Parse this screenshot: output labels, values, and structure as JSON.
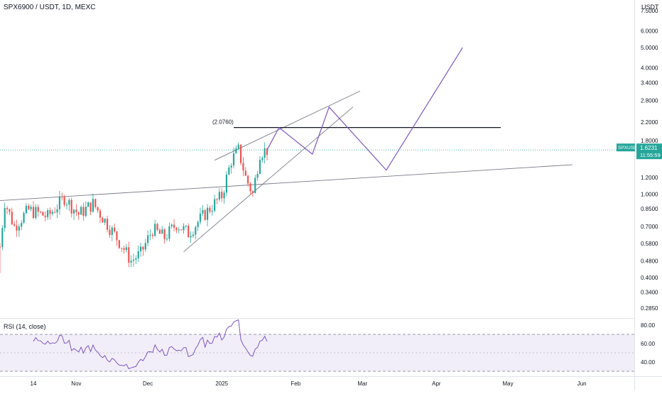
{
  "header": {
    "symbol_title": "SPX6900 / USDT, 1D, MEXC",
    "currency": "USDT"
  },
  "price_axis": {
    "labels": [
      "7.5000",
      "6.0000",
      "5.0000",
      "4.0000",
      "3.4000",
      "2.8000",
      "2.2000",
      "1.8000",
      "1.2000",
      "1.0000",
      "0.8500",
      "0.7000",
      "0.5800",
      "0.4800",
      "0.4000",
      "0.3400",
      "0.2850"
    ],
    "scale": "log"
  },
  "last_price": {
    "symbol": "SPXUSDT",
    "price": "1.6231",
    "countdown": "11:55:59",
    "color": "#26a69a"
  },
  "time_axis": {
    "labels": [
      "14",
      "Nov",
      "Dec",
      "2025",
      "Feb",
      "Mar",
      "Apr",
      "May",
      "Jun"
    ]
  },
  "annotations": {
    "resistance_label": "(2.0760)",
    "resistance_level": 2.076
  },
  "rsi": {
    "title": "RSI (14, close)",
    "labels": [
      "80.00",
      "60.00",
      "40.00"
    ],
    "upper_band": 70,
    "lower_band": 30,
    "middle": 50
  },
  "colors": {
    "up": "#26a69a",
    "down": "#ef5350",
    "projection": "#7e57c2",
    "rsi_line": "#7e57c2",
    "rsi_fill": "#ede7f6",
    "trendline": "#787b86"
  },
  "chart_data": {
    "type": "candlestick",
    "y_scale": "log",
    "y_range": [
      0.26,
      8.3
    ],
    "x_range_days": [
      "2024-09-30",
      "2025-06-23"
    ],
    "candles": [],
    "projection_path": [
      {
        "date": "2025-01-20",
        "price": 1.6231
      },
      {
        "date": "2025-01-25",
        "price": 2.076
      },
      {
        "date": "2025-02-08",
        "price": 1.55
      },
      {
        "date": "2025-02-15",
        "price": 2.6
      },
      {
        "date": "2025-03-11",
        "price": 1.3
      },
      {
        "date": "2025-04-12",
        "price": 5.0
      }
    ],
    "trendlines": [
      {
        "name": "rising-support",
        "from": {
          "date": "2024-12-16",
          "price": 0.53
        },
        "to": {
          "date": "2025-02-25",
          "price": 2.6
        }
      },
      {
        "name": "channel-top",
        "from": {
          "date": "2024-12-29",
          "price": 1.45
        },
        "to": {
          "date": "2025-02-28",
          "price": 3.1
        }
      },
      {
        "name": "long-baseline",
        "from": {
          "date": "2024-09-30",
          "price": 0.93
        },
        "to": {
          "date": "2025-05-28",
          "price": 1.38
        }
      },
      {
        "name": "resistance",
        "from": {
          "date": "2025-01-06",
          "price": 2.076
        },
        "to": {
          "date": "2025-04-28",
          "price": 2.076
        }
      }
    ],
    "rsi_series": []
  }
}
